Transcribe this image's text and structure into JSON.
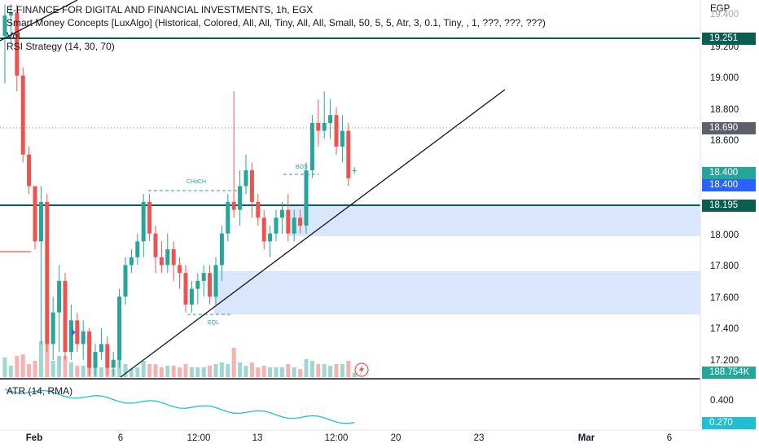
{
  "header": {
    "symbol_line": "E-FINANCE FOR DIGITAL AND FINANCIAL INVESTMENTS, 1h, EGX",
    "indicator_smc": "Smart Money Concepts [LuxAlgo] (Historical, Colored, All, All, Tiny, All, All, Small, 50, 5, 5, Atr, 3, 0.1, Tiny, , 1, ???, ???, ???)",
    "indicator_vol": "Vol",
    "indicator_rsi": "RSI Strategy (14, 30, 70)"
  },
  "price_axis": {
    "currency": "EGP",
    "ticks": [
      "19.400",
      "19.200",
      "19.000",
      "18.800",
      "18.600",
      "18.000",
      "17.800",
      "17.600",
      "17.400",
      "17.200"
    ],
    "tags": {
      "resistance": "19.251",
      "dotted": "18.690",
      "last_green": "18.400",
      "last_blue": "18.400",
      "support": "18.195",
      "volume": "188.754K"
    }
  },
  "atr_panel": {
    "label": "ATR (14, RMA)",
    "ticks": [
      "0.400"
    ],
    "value": "0.270"
  },
  "time_axis": {
    "labels": [
      "Feb",
      "6",
      "12:00",
      "13",
      "12:00",
      "20",
      "23",
      "Mar",
      "6"
    ]
  },
  "annotations": {
    "choch": "CHoCH",
    "bos": "BOS",
    "eql": "EQL"
  },
  "colors": {
    "up": "#26a69a",
    "down": "#ef5350",
    "zone": "#d4e2fb",
    "hline": "#0b5e4f",
    "atr": "#22bfd4",
    "blue_tag": "#2962ff"
  },
  "chart_data": {
    "type": "candlestick",
    "y_axis_range": [
      17.1,
      19.45
    ],
    "resistance_level": 19.251,
    "support_level": 18.195,
    "last_price": 18.4,
    "volume_last": "188.754K",
    "atr_last": 0.27,
    "candles": [
      [
        19.25,
        19.45,
        18.95,
        19.38
      ],
      [
        19.38,
        19.45,
        19.2,
        19.4
      ],
      [
        19.4,
        19.45,
        18.9,
        19.0
      ],
      [
        19.0,
        19.05,
        18.45,
        18.5
      ],
      [
        18.5,
        18.55,
        18.25,
        18.3
      ],
      [
        18.3,
        18.3,
        17.9,
        17.95
      ],
      [
        17.95,
        18.3,
        17.3,
        18.2
      ],
      [
        18.2,
        18.25,
        17.25,
        17.3
      ],
      [
        17.3,
        17.6,
        17.2,
        17.5
      ],
      [
        17.5,
        17.8,
        17.25,
        17.7
      ],
      [
        17.7,
        17.75,
        17.2,
        17.25
      ],
      [
        17.25,
        17.55,
        17.2,
        17.45
      ],
      [
        17.45,
        17.5,
        17.25,
        17.3
      ],
      [
        17.3,
        17.45,
        17.2,
        17.38
      ],
      [
        17.38,
        17.4,
        17.1,
        17.15
      ],
      [
        17.15,
        17.3,
        17.1,
        17.25
      ],
      [
        17.25,
        17.4,
        17.2,
        17.3
      ],
      [
        17.3,
        17.35,
        17.1,
        17.15
      ],
      [
        17.15,
        17.25,
        17.1,
        17.2
      ],
      [
        17.2,
        17.65,
        17.15,
        17.6
      ],
      [
        17.6,
        17.85,
        17.55,
        17.8
      ],
      [
        17.8,
        17.9,
        17.75,
        17.85
      ],
      [
        17.85,
        18.0,
        17.8,
        17.95
      ],
      [
        17.95,
        18.25,
        17.85,
        18.2
      ],
      [
        18.2,
        18.25,
        17.95,
        18.0
      ],
      [
        18.0,
        18.05,
        17.75,
        17.85
      ],
      [
        17.85,
        17.95,
        17.75,
        17.8
      ],
      [
        17.8,
        18.0,
        17.75,
        17.9
      ],
      [
        17.9,
        17.95,
        17.7,
        17.8
      ],
      [
        17.8,
        17.85,
        17.65,
        17.75
      ],
      [
        17.75,
        17.8,
        17.5,
        17.55
      ],
      [
        17.55,
        17.7,
        17.5,
        17.65
      ],
      [
        17.65,
        17.75,
        17.55,
        17.7
      ],
      [
        17.7,
        17.8,
        17.6,
        17.75
      ],
      [
        17.75,
        17.8,
        17.55,
        17.6
      ],
      [
        17.6,
        17.85,
        17.55,
        17.8
      ],
      [
        17.8,
        18.05,
        17.7,
        18.0
      ],
      [
        18.0,
        18.25,
        17.95,
        18.2
      ],
      [
        18.2,
        18.9,
        18.1,
        18.15
      ],
      [
        18.15,
        18.4,
        18.05,
        18.3
      ],
      [
        18.3,
        18.5,
        18.25,
        18.4
      ],
      [
        18.4,
        18.45,
        18.1,
        18.2
      ],
      [
        18.2,
        18.25,
        18.05,
        18.1
      ],
      [
        18.1,
        18.15,
        17.9,
        17.95
      ],
      [
        17.95,
        18.05,
        17.85,
        18.0
      ],
      [
        18.0,
        18.15,
        17.95,
        18.1
      ],
      [
        18.1,
        18.2,
        18.0,
        18.15
      ],
      [
        18.15,
        18.25,
        17.95,
        18.0
      ],
      [
        18.0,
        18.15,
        17.95,
        18.1
      ],
      [
        18.1,
        18.15,
        18.0,
        18.05
      ],
      [
        18.05,
        18.45,
        18.0,
        18.4
      ],
      [
        18.4,
        18.75,
        18.35,
        18.7
      ],
      [
        18.7,
        18.85,
        18.55,
        18.65
      ],
      [
        18.65,
        18.9,
        18.6,
        18.7
      ],
      [
        18.7,
        18.85,
        18.6,
        18.75
      ],
      [
        18.75,
        18.8,
        18.5,
        18.55
      ],
      [
        18.55,
        18.75,
        18.45,
        18.65
      ],
      [
        18.65,
        18.7,
        18.3,
        18.35
      ],
      [
        18.4,
        18.42,
        18.38,
        18.4
      ]
    ]
  }
}
